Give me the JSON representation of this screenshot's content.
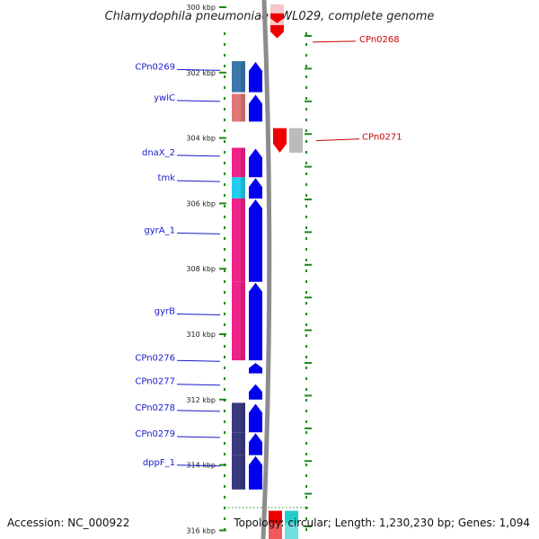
{
  "title": "Chlamydophila pneumoniae CWL029, complete genome",
  "footer": {
    "accession": "Accession: NC_000922",
    "topology": "Topology: circular; Length: 1,230,230 bp; Genes: 1,094"
  },
  "colors": {
    "forward_arrow": "#0000ee",
    "reverse_arrow": "#ee0000",
    "backbone": "#8c8c8c",
    "grid_dots": "#1a8a1a",
    "left_label": "#1a1acd",
    "right_label": "#cc0000"
  },
  "ticks": [
    {
      "kbp": 300,
      "label": "300 kbp"
    },
    {
      "kbp": 302,
      "label": "302 kbp"
    },
    {
      "kbp": 304,
      "label": "304 kbp"
    },
    {
      "kbp": 306,
      "label": "306 kbp"
    },
    {
      "kbp": 308,
      "label": "308 kbp"
    },
    {
      "kbp": 310,
      "label": "310 kbp"
    },
    {
      "kbp": 312,
      "label": "312 kbp"
    },
    {
      "kbp": 314,
      "label": "314 kbp"
    },
    {
      "kbp": 316,
      "label": "316 kbp"
    }
  ],
  "left_genes": [
    {
      "name": "CPn0269",
      "start_kbp": 301.65,
      "end_kbp": 302.6,
      "color": "#3c78aa"
    },
    {
      "name": "ywlC",
      "start_kbp": 302.65,
      "end_kbp": 303.5,
      "color": "#e07878"
    },
    {
      "name": "dnaX_2",
      "start_kbp": 304.3,
      "end_kbp": 305.2,
      "color": "#ee2288"
    },
    {
      "name": "tmk",
      "start_kbp": 305.2,
      "end_kbp": 305.85,
      "color": "#22ccee"
    },
    {
      "name": "gyrA_1",
      "start_kbp": 305.85,
      "end_kbp": 308.4,
      "color": "#ee2288"
    },
    {
      "name": "gyrB",
      "start_kbp": 308.4,
      "end_kbp": 310.8,
      "color": "#ee2288"
    },
    {
      "name": "CPn0276",
      "start_kbp": 310.85,
      "end_kbp": 311.2,
      "color": ""
    },
    {
      "name": "CPn0277",
      "start_kbp": 311.5,
      "end_kbp": 312.0,
      "color": ""
    },
    {
      "name": "CPn0278",
      "start_kbp": 312.1,
      "end_kbp": 313.0,
      "color": "#3a3a80"
    },
    {
      "name": "CPn0279",
      "start_kbp": 313.0,
      "end_kbp": 313.7,
      "color": "#3a3a80"
    },
    {
      "name": "dppF_1",
      "start_kbp": 313.7,
      "end_kbp": 314.75,
      "color": "#3a3a80"
    }
  ],
  "right_genes": [
    {
      "name": "CPn0268",
      "start_kbp": 300.05,
      "end_kbp": 300.95,
      "color": "#f4c8c8"
    },
    {
      "name": "CPn0271",
      "start_kbp": 303.7,
      "end_kbp": 304.45,
      "color": "#bbbbbb"
    }
  ],
  "bottom_right_genes": [
    {
      "name": "",
      "start_kbp": 315.4,
      "end_kbp": 316.3,
      "color": "#ee0000"
    },
    {
      "name": "",
      "start_kbp": 315.4,
      "end_kbp": 316.3,
      "color": "#22cccc"
    }
  ]
}
